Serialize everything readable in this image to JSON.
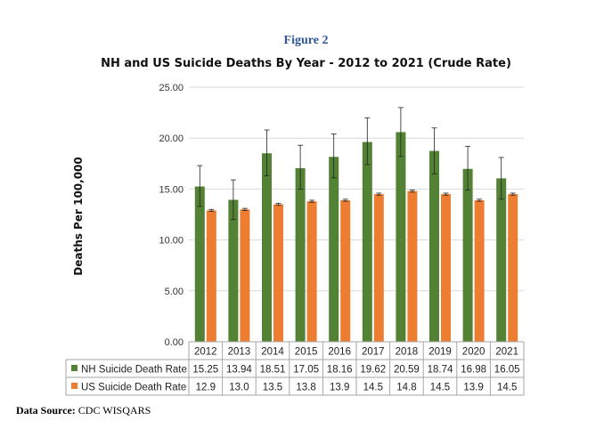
{
  "figure_label": "Figure 2",
  "source": {
    "label": "Data Source:",
    "value": "CDC WISQARS"
  },
  "chart_data": {
    "type": "bar",
    "title": "NH  and US Suicide Deaths By Year - 2012 to 2021 (Crude Rate)",
    "xlabel": "",
    "ylabel": "Deaths Per 100,000",
    "ylim": [
      0,
      25
    ],
    "yticks": [
      "0.00",
      "5.00",
      "10.00",
      "15.00",
      "20.00",
      "25.00"
    ],
    "grid": true,
    "legend": "data-table",
    "categories": [
      "2012",
      "2013",
      "2014",
      "2015",
      "2016",
      "2017",
      "2018",
      "2019",
      "2020",
      "2021"
    ],
    "series": [
      {
        "name": "NH Suicide Death Rate",
        "color": "#548235",
        "values": [
          15.25,
          13.94,
          18.51,
          17.05,
          18.16,
          19.62,
          20.59,
          18.74,
          16.98,
          16.05
        ],
        "labels": [
          "15.25",
          "13.94",
          "18.51",
          "17.05",
          "18.16",
          "19.62",
          "20.59",
          "18.74",
          "16.98",
          "16.05"
        ],
        "error_low": [
          13.3,
          12.0,
          16.3,
          15.0,
          16.1,
          17.4,
          18.2,
          16.5,
          14.9,
          14.0
        ],
        "error_high": [
          17.3,
          15.9,
          20.8,
          19.3,
          20.4,
          22.0,
          23.0,
          21.0,
          19.2,
          18.1
        ]
      },
      {
        "name": "US Suicide Death Rate",
        "color": "#ed7d31",
        "values": [
          12.9,
          13.0,
          13.5,
          13.8,
          13.9,
          14.5,
          14.8,
          14.5,
          13.9,
          14.5
        ],
        "labels": [
          "12.9",
          "13.0",
          "13.5",
          "13.8",
          "13.9",
          "14.5",
          "14.8",
          "14.5",
          "13.9",
          "14.5"
        ],
        "error_low": [
          12.8,
          12.9,
          13.4,
          13.7,
          13.8,
          14.4,
          14.7,
          14.4,
          13.8,
          14.4
        ],
        "error_high": [
          13.0,
          13.1,
          13.6,
          13.9,
          14.0,
          14.6,
          14.9,
          14.6,
          14.0,
          14.6
        ]
      }
    ]
  }
}
